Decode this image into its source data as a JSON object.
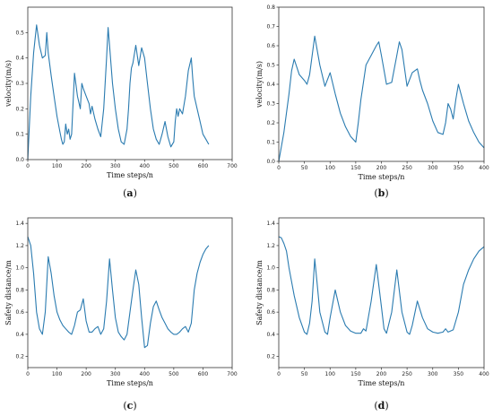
{
  "chart_data": [
    {
      "type": "line",
      "caption": "a",
      "xlabel": "Time steps/n",
      "ylabel": "velocity(m/s)",
      "xlim": [
        0,
        700
      ],
      "ylim": [
        0,
        0.6
      ],
      "xticks": [
        "0",
        "100",
        "200",
        "300",
        "400",
        "500",
        "600",
        "700"
      ],
      "yticks": [
        "0.0",
        "0.1",
        "0.2",
        "0.3",
        "0.4",
        "0.5"
      ],
      "x": [
        0,
        10,
        20,
        30,
        40,
        50,
        60,
        65,
        70,
        80,
        90,
        100,
        110,
        115,
        120,
        125,
        130,
        135,
        140,
        145,
        150,
        155,
        160,
        170,
        180,
        185,
        190,
        200,
        210,
        215,
        220,
        230,
        240,
        250,
        260,
        270,
        275,
        280,
        290,
        300,
        310,
        320,
        330,
        340,
        345,
        350,
        355,
        360,
        370,
        380,
        390,
        400,
        410,
        420,
        430,
        440,
        450,
        460,
        470,
        480,
        490,
        500,
        505,
        510,
        515,
        520,
        530,
        540,
        550,
        560,
        565,
        570,
        580,
        590,
        600,
        610,
        620
      ],
      "y": [
        0.0,
        0.25,
        0.42,
        0.53,
        0.45,
        0.4,
        0.41,
        0.5,
        0.42,
        0.33,
        0.25,
        0.17,
        0.11,
        0.08,
        0.06,
        0.07,
        0.14,
        0.1,
        0.12,
        0.08,
        0.1,
        0.22,
        0.34,
        0.25,
        0.2,
        0.3,
        0.28,
        0.25,
        0.22,
        0.18,
        0.21,
        0.16,
        0.12,
        0.09,
        0.2,
        0.4,
        0.52,
        0.45,
        0.3,
        0.2,
        0.12,
        0.07,
        0.06,
        0.12,
        0.2,
        0.3,
        0.36,
        0.38,
        0.45,
        0.37,
        0.44,
        0.4,
        0.3,
        0.2,
        0.12,
        0.08,
        0.06,
        0.1,
        0.15,
        0.09,
        0.05,
        0.07,
        0.15,
        0.2,
        0.17,
        0.2,
        0.18,
        0.25,
        0.35,
        0.4,
        0.32,
        0.25,
        0.2,
        0.15,
        0.1,
        0.08,
        0.06
      ]
    },
    {
      "type": "line",
      "caption": "b",
      "xlabel": "Time steps/n",
      "ylabel": "velocity(m/s)",
      "xlim": [
        0,
        400
      ],
      "ylim": [
        0,
        0.8
      ],
      "xticks": [
        "0",
        "50",
        "100",
        "150",
        "200",
        "250",
        "300",
        "350",
        "400"
      ],
      "yticks": [
        "0.0",
        "0.1",
        "0.2",
        "0.3",
        "0.4",
        "0.5",
        "0.6",
        "0.7",
        "0.8"
      ],
      "x": [
        0,
        10,
        20,
        25,
        30,
        40,
        50,
        55,
        60,
        70,
        80,
        90,
        100,
        110,
        120,
        130,
        140,
        150,
        155,
        160,
        170,
        180,
        190,
        195,
        200,
        210,
        220,
        230,
        235,
        240,
        250,
        260,
        270,
        275,
        280,
        290,
        300,
        310,
        320,
        325,
        330,
        335,
        340,
        345,
        350,
        360,
        370,
        380,
        390,
        400
      ],
      "y": [
        0.0,
        0.15,
        0.35,
        0.47,
        0.53,
        0.45,
        0.42,
        0.4,
        0.45,
        0.65,
        0.5,
        0.39,
        0.46,
        0.35,
        0.25,
        0.18,
        0.13,
        0.1,
        0.2,
        0.32,
        0.5,
        0.55,
        0.6,
        0.62,
        0.55,
        0.4,
        0.41,
        0.55,
        0.62,
        0.58,
        0.39,
        0.46,
        0.48,
        0.42,
        0.37,
        0.3,
        0.21,
        0.15,
        0.14,
        0.2,
        0.3,
        0.27,
        0.22,
        0.32,
        0.4,
        0.3,
        0.21,
        0.15,
        0.1,
        0.07
      ]
    },
    {
      "type": "line",
      "caption": "c",
      "xlabel": "Time steps/n",
      "ylabel": "Safety distance/m",
      "xlim": [
        0,
        700
      ],
      "ylim": [
        0.1,
        1.45
      ],
      "xticks": [
        "0",
        "100",
        "200",
        "300",
        "400",
        "500",
        "600",
        "700"
      ],
      "yticks": [
        "0.2",
        "0.4",
        "0.6",
        "0.8",
        "1.0",
        "1.2",
        "1.4"
      ],
      "x": [
        0,
        10,
        20,
        30,
        40,
        50,
        60,
        70,
        80,
        90,
        100,
        110,
        120,
        130,
        140,
        150,
        160,
        170,
        180,
        190,
        200,
        210,
        220,
        230,
        240,
        250,
        260,
        270,
        280,
        290,
        300,
        310,
        320,
        330,
        340,
        350,
        360,
        370,
        380,
        390,
        400,
        410,
        420,
        430,
        440,
        450,
        460,
        470,
        480,
        490,
        500,
        510,
        520,
        530,
        540,
        550,
        560,
        570,
        580,
        590,
        600,
        610,
        620
      ],
      "y": [
        1.28,
        1.2,
        0.95,
        0.6,
        0.45,
        0.4,
        0.6,
        1.1,
        0.95,
        0.75,
        0.6,
        0.53,
        0.48,
        0.45,
        0.42,
        0.4,
        0.48,
        0.6,
        0.62,
        0.72,
        0.52,
        0.42,
        0.42,
        0.45,
        0.47,
        0.4,
        0.45,
        0.7,
        1.08,
        0.8,
        0.55,
        0.42,
        0.38,
        0.35,
        0.4,
        0.6,
        0.8,
        0.98,
        0.85,
        0.55,
        0.28,
        0.3,
        0.5,
        0.65,
        0.7,
        0.62,
        0.55,
        0.5,
        0.45,
        0.42,
        0.4,
        0.4,
        0.42,
        0.45,
        0.47,
        0.42,
        0.5,
        0.8,
        0.95,
        1.05,
        1.12,
        1.17,
        1.2
      ]
    },
    {
      "type": "line",
      "caption": "d",
      "xlabel": "Time steps/n",
      "ylabel": "Safety distance/m",
      "xlim": [
        0,
        400
      ],
      "ylim": [
        0.1,
        1.45
      ],
      "xticks": [
        "0",
        "50",
        "100",
        "150",
        "200",
        "250",
        "300",
        "350",
        "400"
      ],
      "yticks": [
        "0.2",
        "0.4",
        "0.6",
        "0.8",
        "1.0",
        "1.2",
        "1.4"
      ],
      "x": [
        0,
        5,
        10,
        15,
        20,
        30,
        40,
        50,
        55,
        60,
        65,
        70,
        75,
        80,
        90,
        95,
        100,
        110,
        120,
        130,
        140,
        150,
        160,
        165,
        170,
        180,
        190,
        200,
        205,
        210,
        220,
        230,
        240,
        250,
        255,
        260,
        270,
        280,
        290,
        300,
        310,
        320,
        325,
        330,
        340,
        350,
        360,
        370,
        380,
        390,
        400
      ],
      "y": [
        1.28,
        1.27,
        1.22,
        1.15,
        1.0,
        0.75,
        0.55,
        0.42,
        0.4,
        0.5,
        0.7,
        1.08,
        0.85,
        0.6,
        0.42,
        0.4,
        0.55,
        0.8,
        0.6,
        0.48,
        0.43,
        0.41,
        0.41,
        0.45,
        0.43,
        0.7,
        1.03,
        0.65,
        0.45,
        0.41,
        0.6,
        0.98,
        0.6,
        0.42,
        0.4,
        0.48,
        0.7,
        0.55,
        0.45,
        0.42,
        0.41,
        0.42,
        0.45,
        0.42,
        0.44,
        0.6,
        0.85,
        0.98,
        1.08,
        1.15,
        1.19
      ]
    }
  ]
}
